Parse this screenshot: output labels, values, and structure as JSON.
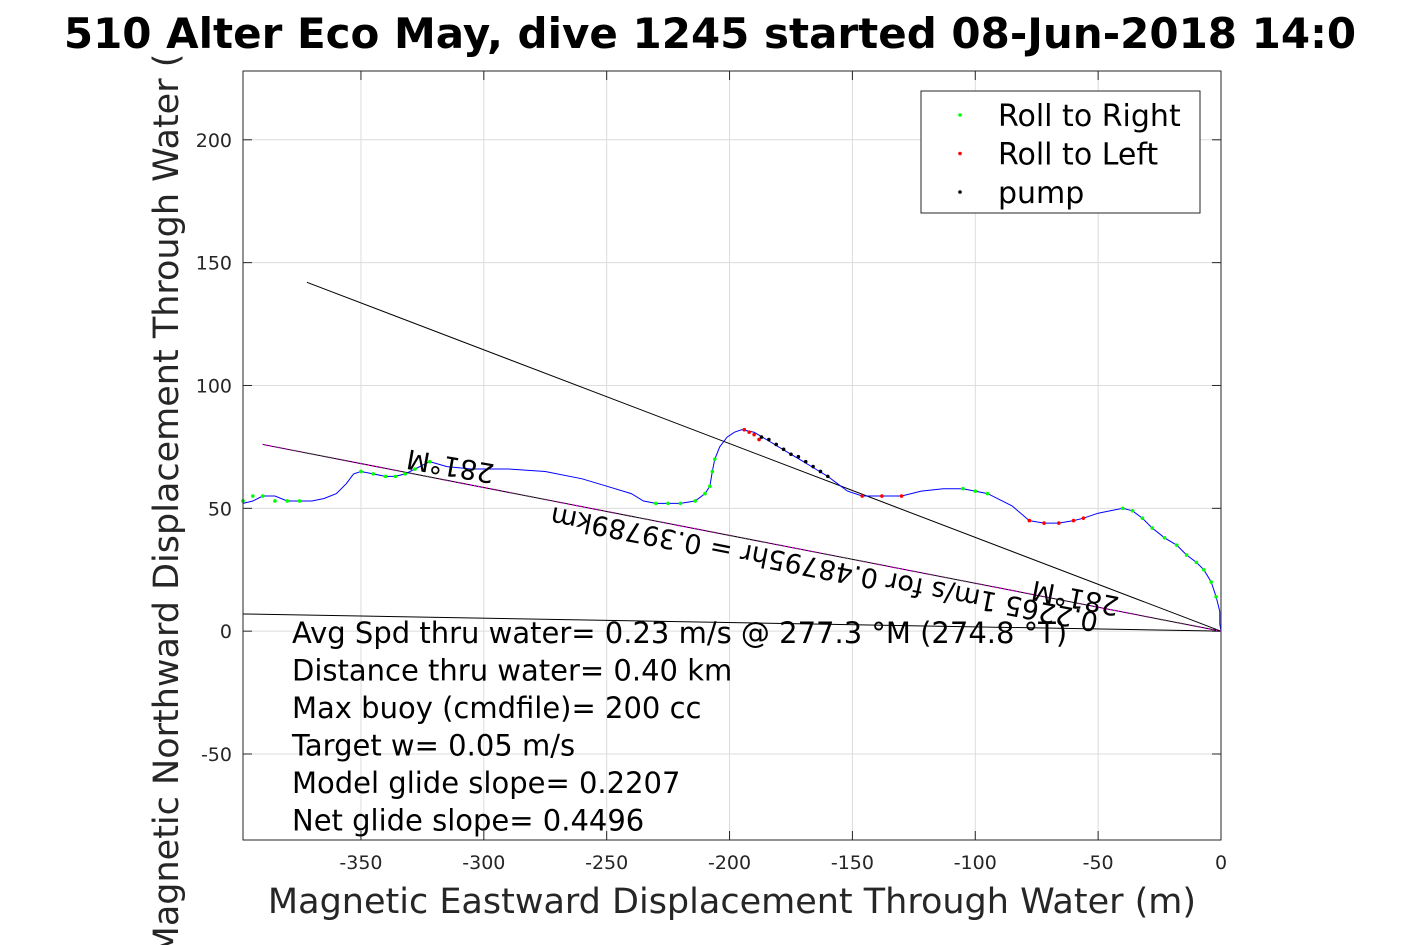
{
  "chart_data": {
    "type": "line",
    "title": "510 Alter Eco May, dive 1245 started 08-Jun-2018 14:0",
    "xlabel": "Magnetic Eastward Displacement Through Water (m)",
    "ylabel": "Magnetic Northward Displacement Through Water (",
    "xlim": [
      -398,
      0
    ],
    "ylim": [
      -85,
      228
    ],
    "xticks": [
      -350,
      -300,
      -250,
      -200,
      -150,
      -100,
      -50,
      0
    ],
    "yticks": [
      -50,
      0,
      50,
      100,
      150,
      200
    ],
    "grid": true,
    "legend": {
      "placement": "top-right",
      "entries": [
        {
          "name": "Roll to Right",
          "color": "#00ff00"
        },
        {
          "name": "Roll to Left",
          "color": "#ff0000"
        },
        {
          "name": "pump",
          "color": "#000000"
        }
      ]
    },
    "track": {
      "color": "#0000ff",
      "x": [
        0,
        -0.5,
        -0.5,
        -2,
        -4,
        -7,
        -10,
        -14,
        -18,
        -23,
        -28,
        -32,
        -36,
        -40,
        -45,
        -50,
        -56,
        -60,
        -66,
        -72,
        -78,
        -85,
        -95,
        -105,
        -113,
        -122,
        -130,
        -138,
        -146,
        -152,
        -156,
        -160,
        -165,
        -170,
        -175,
        -180,
        -185,
        -190,
        -195,
        -198,
        -201,
        -204,
        -206,
        -207,
        -208,
        -210,
        -214,
        -220,
        -225,
        -230,
        -235,
        -240,
        -250,
        -260,
        -275,
        -290,
        -305,
        -315,
        -322,
        -328,
        -332,
        -336,
        -340,
        -345,
        -350,
        -353,
        -356,
        -360,
        -365,
        -370,
        -375,
        -380,
        -385,
        -390,
        -394,
        -398
      ],
      "y": [
        0,
        3,
        8,
        14,
        20,
        25,
        28,
        31,
        35,
        38,
        42,
        46,
        49,
        50,
        49,
        48,
        46,
        45,
        44,
        44,
        45,
        51,
        56,
        58,
        58,
        57,
        55,
        55,
        55,
        57,
        60,
        63,
        66,
        69,
        72,
        75,
        78,
        81,
        82,
        81,
        79,
        75,
        70,
        65,
        59,
        56,
        53,
        52,
        52,
        52,
        53,
        56,
        59,
        62,
        65,
        66,
        66,
        67,
        69,
        66,
        64,
        63,
        63,
        64,
        65,
        64,
        60,
        56,
        54,
        53,
        53,
        53,
        55,
        55,
        53,
        52
      ]
    },
    "markers": {
      "roll_right": {
        "x": [
          -2,
          -4,
          -7,
          -10,
          -14,
          -18,
          -23,
          -28,
          -32,
          -36,
          -40,
          -95,
          -100,
          -105,
          -206,
          -207,
          -208,
          -210,
          -214,
          -220,
          -225,
          -230,
          -322,
          -328,
          -332,
          -336,
          -340,
          -345,
          -350,
          -375,
          -380,
          -385,
          -390,
          -394,
          -398
        ],
        "y": [
          14,
          20,
          25,
          28,
          31,
          35,
          38,
          42,
          46,
          49,
          50,
          56,
          57,
          58,
          70,
          65,
          59,
          56,
          53,
          52,
          52,
          52,
          69,
          66,
          64,
          63,
          63,
          64,
          65,
          53,
          53,
          53,
          55,
          55,
          53
        ]
      },
      "roll_left": {
        "x": [
          -56,
          -60,
          -66,
          -72,
          -78,
          -130,
          -138,
          -146,
          -188,
          -190,
          -192,
          -194
        ],
        "y": [
          46,
          45,
          44,
          44,
          45,
          55,
          55,
          55,
          78,
          80,
          81,
          82
        ]
      },
      "pump": {
        "x": [
          -160,
          -163,
          -166,
          -169,
          -172,
          -175,
          -178,
          -181,
          -184,
          -187
        ],
        "y": [
          63,
          65,
          67,
          69,
          71,
          72,
          74,
          76,
          78,
          79
        ]
      }
    },
    "lines": [
      {
        "name": "heading line",
        "x": [
          0,
          -372
        ],
        "y": [
          0,
          142
        ]
      },
      {
        "name": "avg speed line",
        "x": [
          0,
          -390
        ],
        "y": [
          0,
          76
        ]
      },
      {
        "name": "current line",
        "x": [
          0,
          -398
        ],
        "y": [
          0,
          7
        ]
      }
    ],
    "annotations": {
      "heading_upper": "281°M",
      "heading_lower": "281°M",
      "speed_label": "0.2265 1m/s for 0.48795hr = 0.39789km"
    },
    "stats": [
      "Avg Spd thru water=  0.23 m/s @ 277.3 °M (274.8 °T)",
      "Distance thru water=  0.40 km",
      "Max buoy (cmdfile)= 200 cc",
      "Target w= 0.05 m/s",
      "Model glide slope= 0.2207",
      "Net glide slope= 0.4496"
    ]
  }
}
